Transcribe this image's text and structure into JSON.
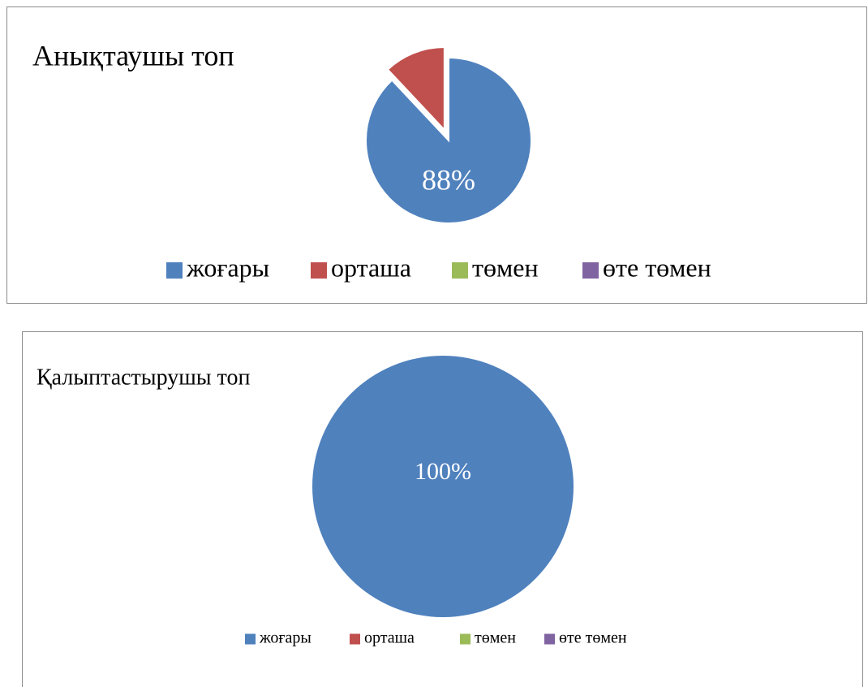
{
  "chart_data": [
    {
      "type": "pie",
      "title": "Анықтаушы топ",
      "categories": [
        "жоғары",
        "орташа",
        "төмен",
        "өте төмен"
      ],
      "values": [
        88,
        12,
        0,
        0
      ],
      "value_labels": [
        "88%",
        null,
        null,
        null
      ],
      "colors": [
        "#4f81bd",
        "#c0504d",
        "#9bbb59",
        "#8064a2"
      ],
      "legend": "bottom"
    },
    {
      "type": "pie",
      "title": "Қалыптастырушы топ",
      "categories": [
        "жоғары",
        "орташа",
        "төмен",
        "өте төмен"
      ],
      "values": [
        100,
        0,
        0,
        0
      ],
      "value_labels": [
        "100%",
        null,
        null,
        null
      ],
      "colors": [
        "#4f81bd",
        "#c0504d",
        "#9bbb59",
        "#8064a2"
      ],
      "legend": "bottom"
    }
  ]
}
